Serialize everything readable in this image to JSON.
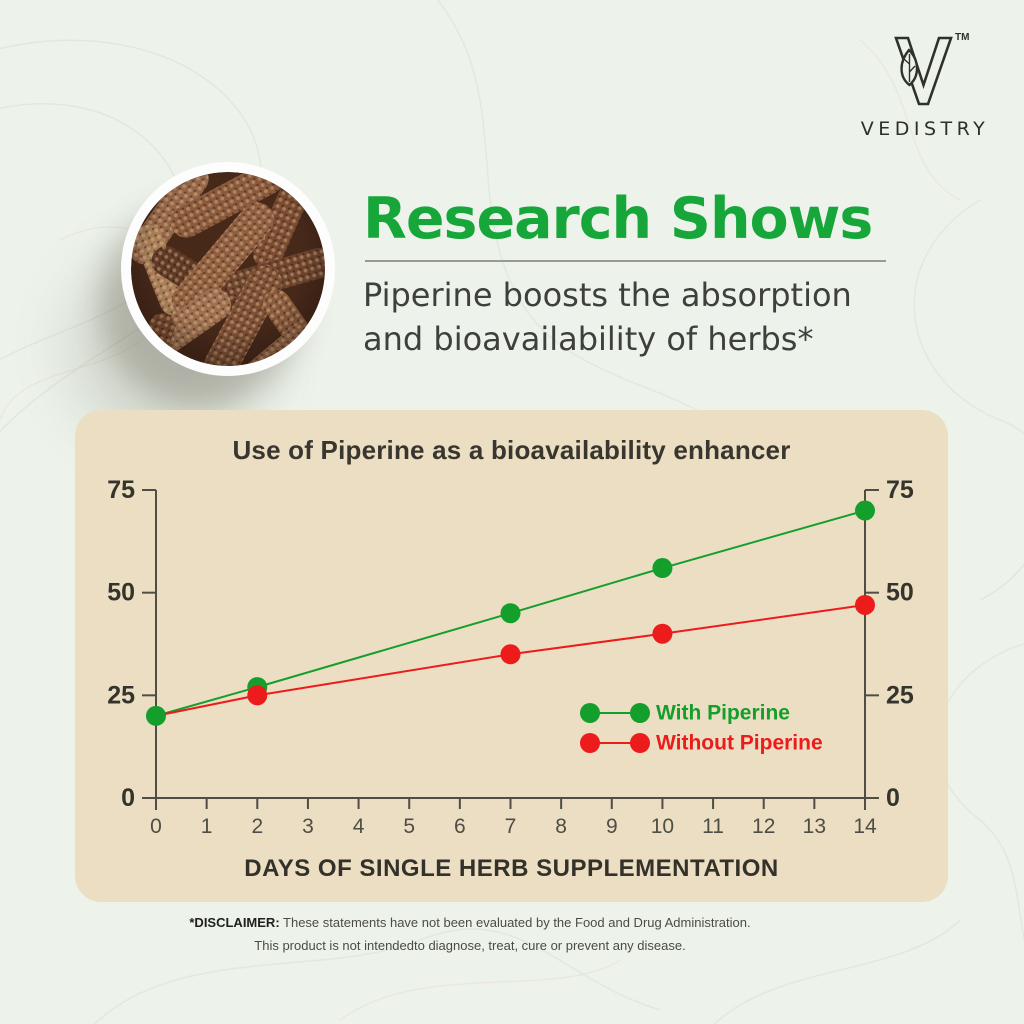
{
  "brand": {
    "name": "VEDISTRY",
    "trademark_mark": "TM"
  },
  "hero": {
    "title": "Research Shows",
    "subtitle_line1": "Piperine boosts the absorption",
    "subtitle_line2": "and bioavailability of herbs*"
  },
  "chart_data": {
    "type": "line",
    "title": "Use of Piperine as a bioavailability enhancer",
    "xlabel": "DAYS OF SINGLE HERB SUPPLEMENTATION",
    "ylabel": "",
    "xlim": [
      0,
      14
    ],
    "ylim": [
      0,
      75
    ],
    "x_ticks": [
      0,
      1,
      2,
      3,
      4,
      5,
      6,
      7,
      8,
      9,
      10,
      11,
      12,
      13,
      14
    ],
    "y_ticks": [
      0,
      25,
      50,
      75
    ],
    "y_axis_sides": [
      "left",
      "right"
    ],
    "grid": false,
    "legend_position": "inside bottom-right",
    "series": [
      {
        "name": "With Piperine",
        "color": "#149e2c",
        "x": [
          0,
          2,
          7,
          10,
          14
        ],
        "values": [
          20,
          27,
          45,
          56,
          70
        ],
        "marker": "circle"
      },
      {
        "name": "Without Piperine",
        "color": "#ec1c1c",
        "x": [
          0,
          2,
          7,
          10,
          14
        ],
        "values": [
          20,
          25,
          35,
          40,
          47
        ],
        "marker": "circle",
        "first_marker_hidden": true
      }
    ]
  },
  "disclaimer": {
    "label": "*DISCLAIMER:",
    "line1_rest": " These statements have not been evaluated by the Food and Drug Administration.",
    "line2": "This product is not intendedto diagnose, treat, cure or prevent any disease."
  },
  "colors": {
    "page_bg": "#edf3eb",
    "panel_bg": "#ebdec2",
    "title_green": "#17a63a",
    "series_green": "#149e2c",
    "series_red": "#ec1c1c",
    "axis": "#4f4d44",
    "dark_text": "#38362e"
  }
}
